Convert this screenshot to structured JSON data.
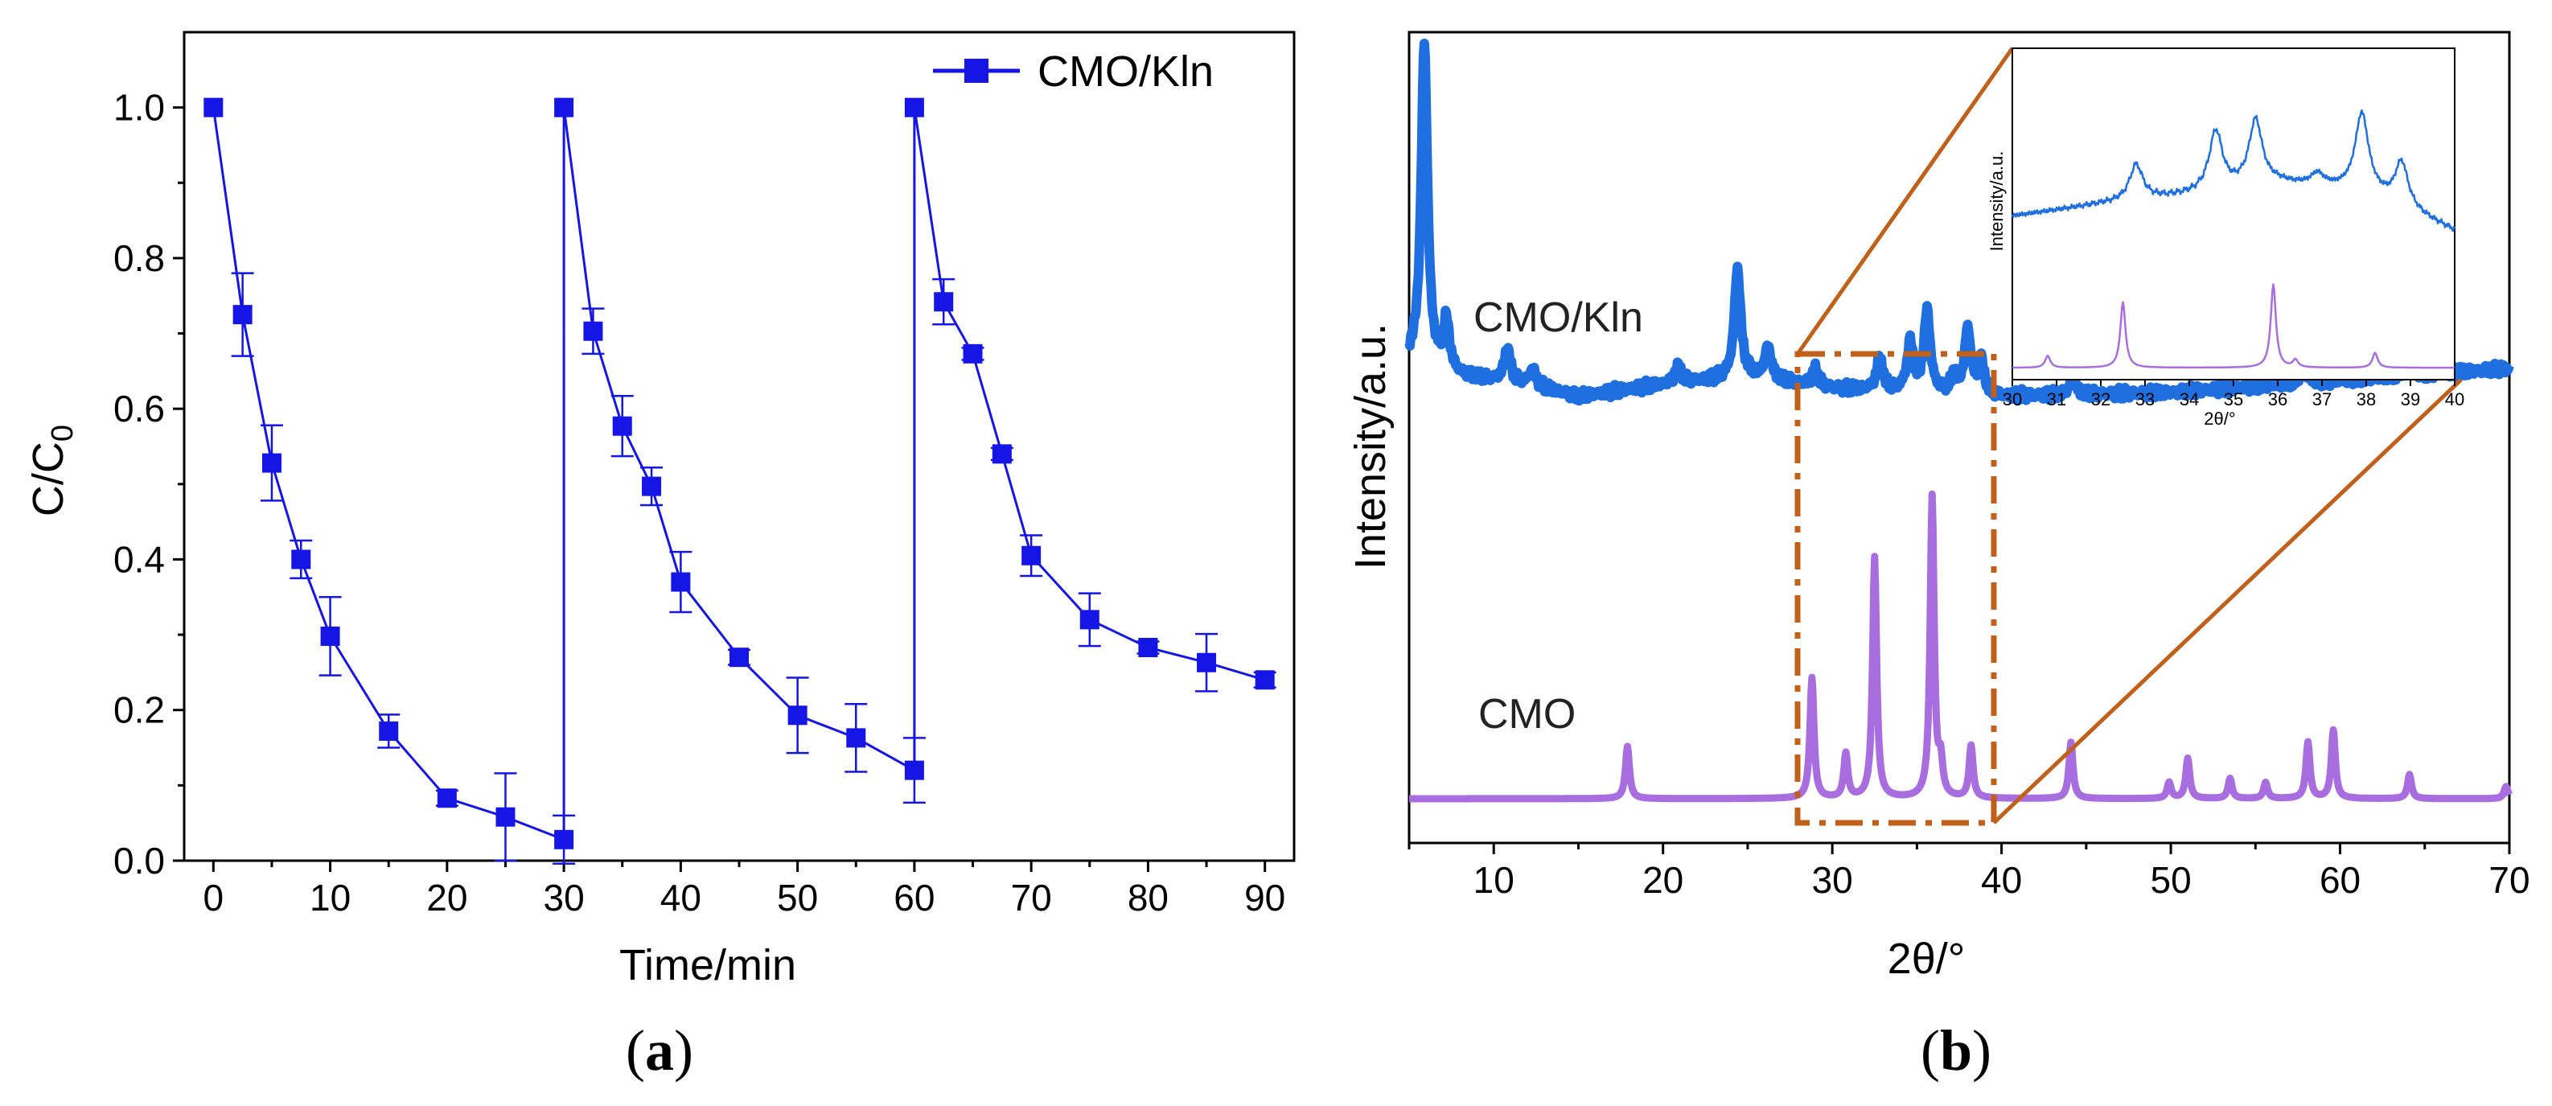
{
  "chart_data": [
    {
      "type": "line",
      "panel": "(a)",
      "panel_letter": "a",
      "panel_open": "(",
      "panel_close": ")",
      "xlabel": "Time/min",
      "ylabel": "C/C",
      "ylabel_subscript": "0",
      "xlim": [
        -2.5,
        92.5
      ],
      "ylim": [
        0.0,
        1.1
      ],
      "xticks": [
        "0",
        "10",
        "20",
        "30",
        "40",
        "50",
        "60",
        "70",
        "80",
        "90"
      ],
      "yticks": [
        "0.0",
        "0.2",
        "0.4",
        "0.6",
        "0.8",
        "1.0"
      ],
      "legend": {
        "label": "CMO/Kln",
        "position": "top-right"
      },
      "color": "#1515e6",
      "series": [
        {
          "name": "CMO/Kln",
          "cycles": [
            {
              "x": [
                0,
                2.5,
                5,
                7.5,
                10,
                15,
                20,
                25,
                30
              ],
              "y": [
                1.0,
                0.725,
                0.528,
                0.4,
                0.298,
                0.172,
                0.083,
                0.058,
                0.028
              ],
              "err": [
                0,
                0.055,
                0.05,
                0.025,
                0.052,
                0.022,
                0.01,
                0.058,
                0.032
              ]
            },
            {
              "x": [
                30,
                32.5,
                35,
                37.5,
                40,
                45,
                50,
                55,
                60
              ],
              "y": [
                1.0,
                0.703,
                0.577,
                0.497,
                0.37,
                0.27,
                0.193,
                0.163,
                0.12
              ],
              "err": [
                0,
                0.03,
                0.04,
                0.025,
                0.04,
                0.01,
                0.05,
                0.045,
                0.043
              ]
            },
            {
              "x": [
                60,
                62.5,
                65,
                67.5,
                70,
                75,
                80,
                85,
                90
              ],
              "y": [
                1.0,
                0.742,
                0.673,
                0.54,
                0.405,
                0.32,
                0.283,
                0.263,
                0.24
              ],
              "err": [
                0,
                0.03,
                0.008,
                0.008,
                0.027,
                0.035,
                0.008,
                0.038,
                0.01
              ]
            }
          ]
        }
      ]
    },
    {
      "type": "line",
      "panel": "(b)",
      "panel_letter": "b",
      "panel_open": "(",
      "panel_close": ")",
      "xlabel": "2θ/°",
      "ylabel": "Intensity/a.u.",
      "xlim": [
        5,
        70
      ],
      "xticks": [
        "10",
        "20",
        "30",
        "40",
        "50",
        "60",
        "70"
      ],
      "series": [
        {
          "name": "CMO/Kln",
          "color": "#1f6fe0",
          "baseline": [
            [
              5,
              0.6
            ],
            [
              8,
              0.58
            ],
            [
              12,
              0.57
            ],
            [
              15,
              0.555
            ],
            [
              20,
              0.57
            ],
            [
              25,
              0.58
            ],
            [
              30,
              0.565
            ],
            [
              40,
              0.555
            ],
            [
              50,
              0.56
            ],
            [
              60,
              0.575
            ],
            [
              70,
              0.59
            ]
          ],
          "peaks": [
            [
              5.9,
              0.4
            ],
            [
              7.2,
              0.06
            ],
            [
              10.8,
              0.04
            ],
            [
              12.3,
              0.02
            ],
            [
              20.9,
              0.02
            ],
            [
              24.4,
              0.135
            ],
            [
              26.2,
              0.04
            ],
            [
              29.0,
              0.02
            ],
            [
              32.8,
              0.04
            ],
            [
              34.6,
              0.06
            ],
            [
              35.6,
              0.1
            ],
            [
              37.2,
              0.02
            ],
            [
              38.0,
              0.08
            ],
            [
              38.8,
              0.04
            ],
            [
              44.2,
              0.02
            ],
            [
              57.8,
              0.02
            ],
            [
              64.0,
              0.02
            ]
          ]
        },
        {
          "name": "CMO",
          "color": "#a86ee0",
          "baseline": [
            [
              5,
              0.055
            ],
            [
              70,
              0.055
            ]
          ],
          "peaks": [
            [
              17.9,
              0.065
            ],
            [
              28.8,
              0.15
            ],
            [
              30.8,
              0.055
            ],
            [
              32.5,
              0.3
            ],
            [
              35.9,
              0.375
            ],
            [
              36.4,
              0.04
            ],
            [
              38.2,
              0.065
            ],
            [
              44.1,
              0.07
            ],
            [
              49.9,
              0.02
            ],
            [
              51.0,
              0.05
            ],
            [
              53.5,
              0.025
            ],
            [
              55.6,
              0.02
            ],
            [
              58.1,
              0.07
            ],
            [
              59.6,
              0.085
            ],
            [
              64.1,
              0.03
            ],
            [
              69.8,
              0.015
            ]
          ]
        }
      ],
      "inset": {
        "xlim": [
          30,
          40
        ],
        "xticks": [
          "30",
          "31",
          "32",
          "33",
          "34",
          "35",
          "36",
          "37",
          "38",
          "39",
          "40"
        ],
        "xlabel": "2θ/°",
        "ylabel": "Intensity/a.u.",
        "series": [
          {
            "name": "CMO/Kln",
            "color": "#1f6fe0",
            "baseline": [
              [
                30,
                0.55
              ],
              [
                32,
                0.59
              ],
              [
                34,
                0.62
              ],
              [
                36,
                0.66
              ],
              [
                38,
                0.63
              ],
              [
                40,
                0.5
              ]
            ],
            "peaks": [
              [
                32.8,
                0.12
              ],
              [
                34.6,
                0.2
              ],
              [
                35.5,
                0.22
              ],
              [
                36.9,
                0.04
              ],
              [
                37.9,
                0.26
              ],
              [
                38.8,
                0.15
              ]
            ]
          },
          {
            "name": "CMO",
            "color": "#a86ee0",
            "baseline": [
              [
                30,
                0.04
              ],
              [
                40,
                0.04
              ]
            ],
            "peaks": [
              [
                30.8,
                0.04
              ],
              [
                32.5,
                0.22
              ],
              [
                35.9,
                0.28
              ],
              [
                36.4,
                0.025
              ],
              [
                38.2,
                0.05
              ]
            ]
          }
        ]
      },
      "annotations": {
        "curve_labels": [
          "CMO/Kln",
          "CMO"
        ],
        "zoom_box_xrange": [
          28,
          39.5
        ],
        "zoom_box_color": "#c0601a"
      }
    }
  ]
}
